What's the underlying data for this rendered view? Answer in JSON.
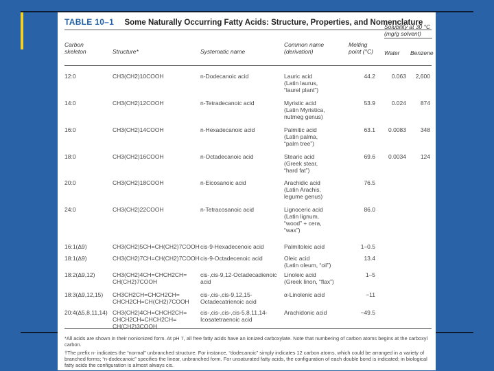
{
  "table": {
    "number": "TABLE 10–1",
    "caption": "Some Naturally Occurring Fatty Acids: Structure, Properties, and Nomenclature"
  },
  "headers": {
    "skeleton_1": "Carbon",
    "skeleton_2": "skeleton",
    "structure": "Structure*",
    "systematic": "Systematic name",
    "common_1": "Common name",
    "common_2": "(derivation)",
    "melting_1": "Melting",
    "melting_2": "point (°C)",
    "solubility_1": "Solubility at 30 °C",
    "solubility_2": "(mg/g solvent)",
    "water": "Water",
    "benzene": "Benzene"
  },
  "rows": [
    {
      "skeleton": "12:0",
      "structure": [
        "CH3(CH2)10COOH"
      ],
      "systematic": [
        "n-Dodecanoic acid"
      ],
      "common": [
        "Lauric acid",
        "(Latin laurus,",
        "“laurel plant”)"
      ],
      "melting": "44.2",
      "water": "0.063",
      "benzene": "2,600"
    },
    {
      "skeleton": "14:0",
      "structure": [
        "CH3(CH2)12COOH"
      ],
      "systematic": [
        "n-Tetradecanoic acid"
      ],
      "common": [
        "Myristic acid",
        "(Latin Myristica,",
        "nutmeg genus)"
      ],
      "melting": "53.9",
      "water": "0.024",
      "benzene": "874"
    },
    {
      "skeleton": "16:0",
      "structure": [
        "CH3(CH2)14COOH"
      ],
      "systematic": [
        "n-Hexadecanoic acid"
      ],
      "common": [
        "Palmitic acid",
        "(Latin palma,",
        "“palm tree”)"
      ],
      "melting": "63.1",
      "water": "0.0083",
      "benzene": "348"
    },
    {
      "skeleton": "18:0",
      "structure": [
        "CH3(CH2)16COOH"
      ],
      "systematic": [
        "n-Octadecanoic acid"
      ],
      "common": [
        "Stearic acid",
        "(Greek stear,",
        "“hard fat”)"
      ],
      "melting": "69.6",
      "water": "0.0034",
      "benzene": "124"
    },
    {
      "skeleton": "20:0",
      "structure": [
        "CH3(CH2)18COOH"
      ],
      "systematic": [
        "n-Eicosanoic acid"
      ],
      "common": [
        "Arachidic acid",
        "(Latin Arachis,",
        "legume genus)"
      ],
      "melting": "76.5",
      "water": "",
      "benzene": ""
    },
    {
      "skeleton": "24:0",
      "structure": [
        "CH3(CH2)22COOH"
      ],
      "systematic": [
        "n-Tetracosanoic acid"
      ],
      "common": [
        "Lignoceric acid",
        "(Latin lignum,",
        "“wood” + cera,",
        "“wax”)"
      ],
      "melting": "86.0",
      "water": "",
      "benzene": ""
    },
    {
      "skeleton": "16:1(Δ9)",
      "structure": [
        "CH3(CH2)5CH=CH(CH2)7COOH"
      ],
      "systematic": [
        "cis-9-Hexadecenoic acid"
      ],
      "common": [
        "Palmitoleic acid"
      ],
      "melting": "1–0.5",
      "water": "",
      "benzene": ""
    },
    {
      "skeleton": "18:1(Δ9)",
      "structure": [
        "CH3(CH2)7CH=CH(CH2)7COOH"
      ],
      "systematic": [
        "cis-9-Octadecenoic acid"
      ],
      "common": [
        "Oleic acid",
        "(Latin oleum, “oil”)"
      ],
      "melting": "13.4",
      "water": "",
      "benzene": ""
    },
    {
      "skeleton": "18:2(Δ9,12)",
      "structure": [
        "CH3(CH2)4CH=CHCH2CH=",
        "CH(CH2)7COOH"
      ],
      "systematic": [
        "cis-,cis-9,12-Octadecadienoic",
        "acid"
      ],
      "common": [
        "Linoleic acid",
        "(Greek linon, “flax”)"
      ],
      "melting": "1–5",
      "water": "",
      "benzene": ""
    },
    {
      "skeleton": "18:3(Δ9,12,15)",
      "structure": [
        "CH3CH2CH=CHCH2CH=",
        "CHCH2CH=CH(CH2)7COOH"
      ],
      "systematic": [
        "cis-,cis-,cis-9,12,15-",
        "Octadecatrienoic acid"
      ],
      "common": [
        "α-Linolenic acid"
      ],
      "melting": "−11",
      "water": "",
      "benzene": ""
    },
    {
      "skeleton": "20:4(Δ5,8,11,14)",
      "structure": [
        "CH3(CH2)4CH=CHCH2CH=",
        "CHCH2CH=CHCH2CH=",
        "CH(CH2)3COOH"
      ],
      "systematic": [
        "cis-,cis-,cis-,cis-5,8,11,14-",
        "Icosatetraenoic acid"
      ],
      "common": [
        "Arachidonic acid"
      ],
      "melting": "−49.5",
      "water": "",
      "benzene": ""
    }
  ],
  "footnotes": [
    "*All acids are shown in their nonionized form. At pH 7, all free fatty acids have an ionized carboxylate. Note that numbering of carbon atoms begins at the carboxyl carbon.",
    "†The prefix n- indicates the “normal” unbranched structure. For instance, “dodecanoic” simply indicates 12 carbon atoms, which could be arranged in a variety of branched forms; “n-dodecanoic” specifies the linear, unbranched form. For unsaturated fatty acids, the configuration of each double bond is indicated; in biological fatty acids the configuration is almost always cis."
  ],
  "colors": {
    "background": "#2a62a7",
    "accent_line": "#f0d22a",
    "title_blue": "#1f5fa8"
  }
}
